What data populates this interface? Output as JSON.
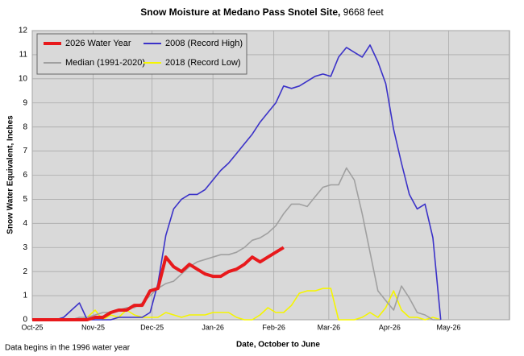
{
  "chart_data": {
    "type": "line",
    "title": "Snow Moisture at Medano Pass Snotel Site,",
    "title_suffix": "9668 feet",
    "xlabel": "Date, October to June",
    "ylabel": "Snow Water Equivalent, Inches",
    "footnote": "Data begins in the 1996 water year",
    "grid": true,
    "legend": "upper left",
    "xlim": [
      0,
      243
    ],
    "xticks": [
      {
        "value": 0,
        "label": "Oct-25"
      },
      {
        "value": 31,
        "label": "Nov-25"
      },
      {
        "value": 61,
        "label": "Dec-25"
      },
      {
        "value": 92,
        "label": "Jan-26"
      },
      {
        "value": 123,
        "label": "Feb-26"
      },
      {
        "value": 151,
        "label": "Mar-26"
      },
      {
        "value": 182,
        "label": "Apr-26"
      },
      {
        "value": 212,
        "label": "May-26"
      }
    ],
    "ylim": [
      0,
      12
    ],
    "yticks": [
      0,
      1,
      2,
      3,
      4,
      5,
      6,
      7,
      8,
      9,
      10,
      11,
      12
    ],
    "x": [
      0,
      4,
      8,
      12,
      16,
      20,
      24,
      28,
      32,
      36,
      40,
      44,
      48,
      52,
      56,
      60,
      64,
      68,
      72,
      76,
      80,
      84,
      88,
      92,
      96,
      100,
      104,
      108,
      112,
      116,
      120,
      124,
      128,
      132,
      136,
      140,
      144,
      148,
      152,
      156,
      160,
      164,
      168,
      172,
      176,
      180,
      184,
      188,
      192,
      196,
      200,
      204,
      208,
      212,
      216,
      220,
      224,
      228,
      232,
      236,
      240
    ],
    "series": [
      {
        "name": "2026 Water Year",
        "color": "#e8191c",
        "values": [
          0,
          0,
          0,
          0,
          0,
          0,
          0,
          0,
          0.1,
          0.1,
          0.3,
          0.4,
          0.4,
          0.6,
          0.6,
          1.2,
          1.3,
          2.6,
          2.2,
          2.0,
          2.3,
          2.1,
          1.9,
          1.8,
          1.8,
          2.0,
          2.1,
          2.3,
          2.6,
          2.4,
          2.6,
          2.8,
          3.0,
          null,
          null,
          null,
          null,
          null,
          null,
          null,
          null,
          null,
          null,
          null,
          null,
          null,
          null,
          null,
          null,
          null,
          null,
          null,
          null,
          null,
          null,
          null,
          null,
          null,
          null,
          null,
          null
        ]
      },
      {
        "name": "2008 (Record High)",
        "color": "#3b32c8",
        "values": [
          0,
          0,
          0,
          0,
          0.1,
          0.4,
          0.7,
          0,
          0,
          0,
          0,
          0.1,
          0.1,
          0.1,
          0.1,
          0.3,
          1.5,
          3.5,
          4.6,
          5.0,
          5.2,
          5.2,
          5.4,
          5.8,
          6.2,
          6.5,
          6.9,
          7.3,
          7.7,
          8.2,
          8.6,
          9.0,
          9.7,
          9.6,
          9.7,
          9.9,
          10.1,
          10.2,
          10.1,
          10.9,
          11.3,
          11.1,
          10.9,
          11.4,
          10.7,
          9.8,
          7.9,
          6.5,
          5.2,
          4.6,
          4.8,
          3.4,
          0,
          null,
          null,
          null,
          null,
          null,
          null,
          null,
          null
        ]
      },
      {
        "name": "Median (1991-2020)",
        "color": "#a0a0a0",
        "values": [
          0,
          0,
          0,
          0,
          0,
          0,
          0.1,
          0.1,
          0.2,
          0.3,
          0.3,
          0.4,
          0.5,
          0.5,
          0.7,
          1.0,
          1.3,
          1.5,
          1.6,
          1.9,
          2.2,
          2.4,
          2.5,
          2.6,
          2.7,
          2.7,
          2.8,
          3.0,
          3.3,
          3.4,
          3.6,
          3.9,
          4.4,
          4.8,
          4.8,
          4.7,
          5.1,
          5.5,
          5.6,
          5.6,
          6.3,
          5.8,
          4.4,
          2.8,
          1.2,
          0.8,
          0.4,
          1.4,
          0.9,
          0.3,
          0.2,
          0,
          0,
          null,
          null,
          null,
          null,
          null,
          null,
          null,
          null
        ]
      },
      {
        "name": "2018 (Record Low)",
        "color": "#f5f500",
        "values": [
          0,
          0,
          0,
          0,
          0,
          0,
          0,
          0.1,
          0.4,
          0,
          0.2,
          0.1,
          0.4,
          0.2,
          0.1,
          0.1,
          0.1,
          0.3,
          0.2,
          0.1,
          0.2,
          0.2,
          0.2,
          0.3,
          0.3,
          0.3,
          0.1,
          0,
          0,
          0.2,
          0.5,
          0.3,
          0.3,
          0.6,
          1.1,
          1.2,
          1.2,
          1.3,
          1.3,
          0,
          0,
          0,
          0.1,
          0.3,
          0.1,
          0.5,
          1.2,
          0.4,
          0.1,
          0.1,
          0,
          0.1,
          0,
          null,
          null,
          null,
          null,
          null,
          null,
          null,
          null
        ]
      }
    ]
  }
}
